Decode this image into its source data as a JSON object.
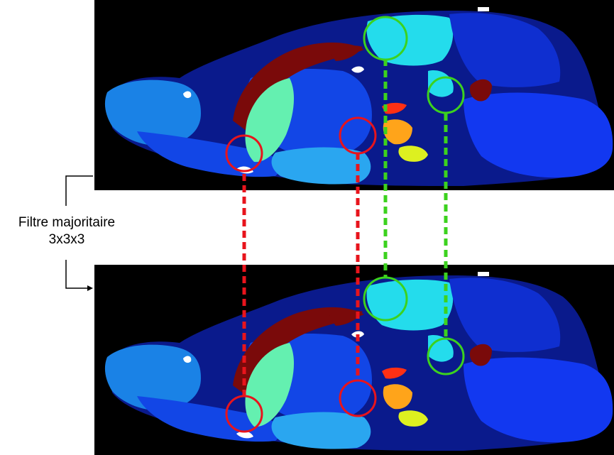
{
  "label": {
    "line1": "Filtre majoritaire",
    "line2": "3x3x3"
  },
  "panels": [
    {
      "role": "before-filter"
    },
    {
      "role": "after-filter"
    }
  ],
  "markers": {
    "red_count": 3,
    "green_count": 2,
    "colors": {
      "red": "#e8141c",
      "green": "#3cd21e"
    }
  },
  "palette": {
    "background": "#000000",
    "dark_navy": "#0a1a8c",
    "blue": "#1246e6",
    "royal_blue": "#0f2fd0",
    "sky_blue": "#1a82e6",
    "light_blue": "#2aa6f0",
    "cyan": "#24dcec",
    "aquamarine": "#64f0b0",
    "maroon": "#7a0a0a",
    "orange": "#ffa41a",
    "yellow": "#ddf020",
    "red": "#ff3014",
    "white": "#ffffff"
  }
}
